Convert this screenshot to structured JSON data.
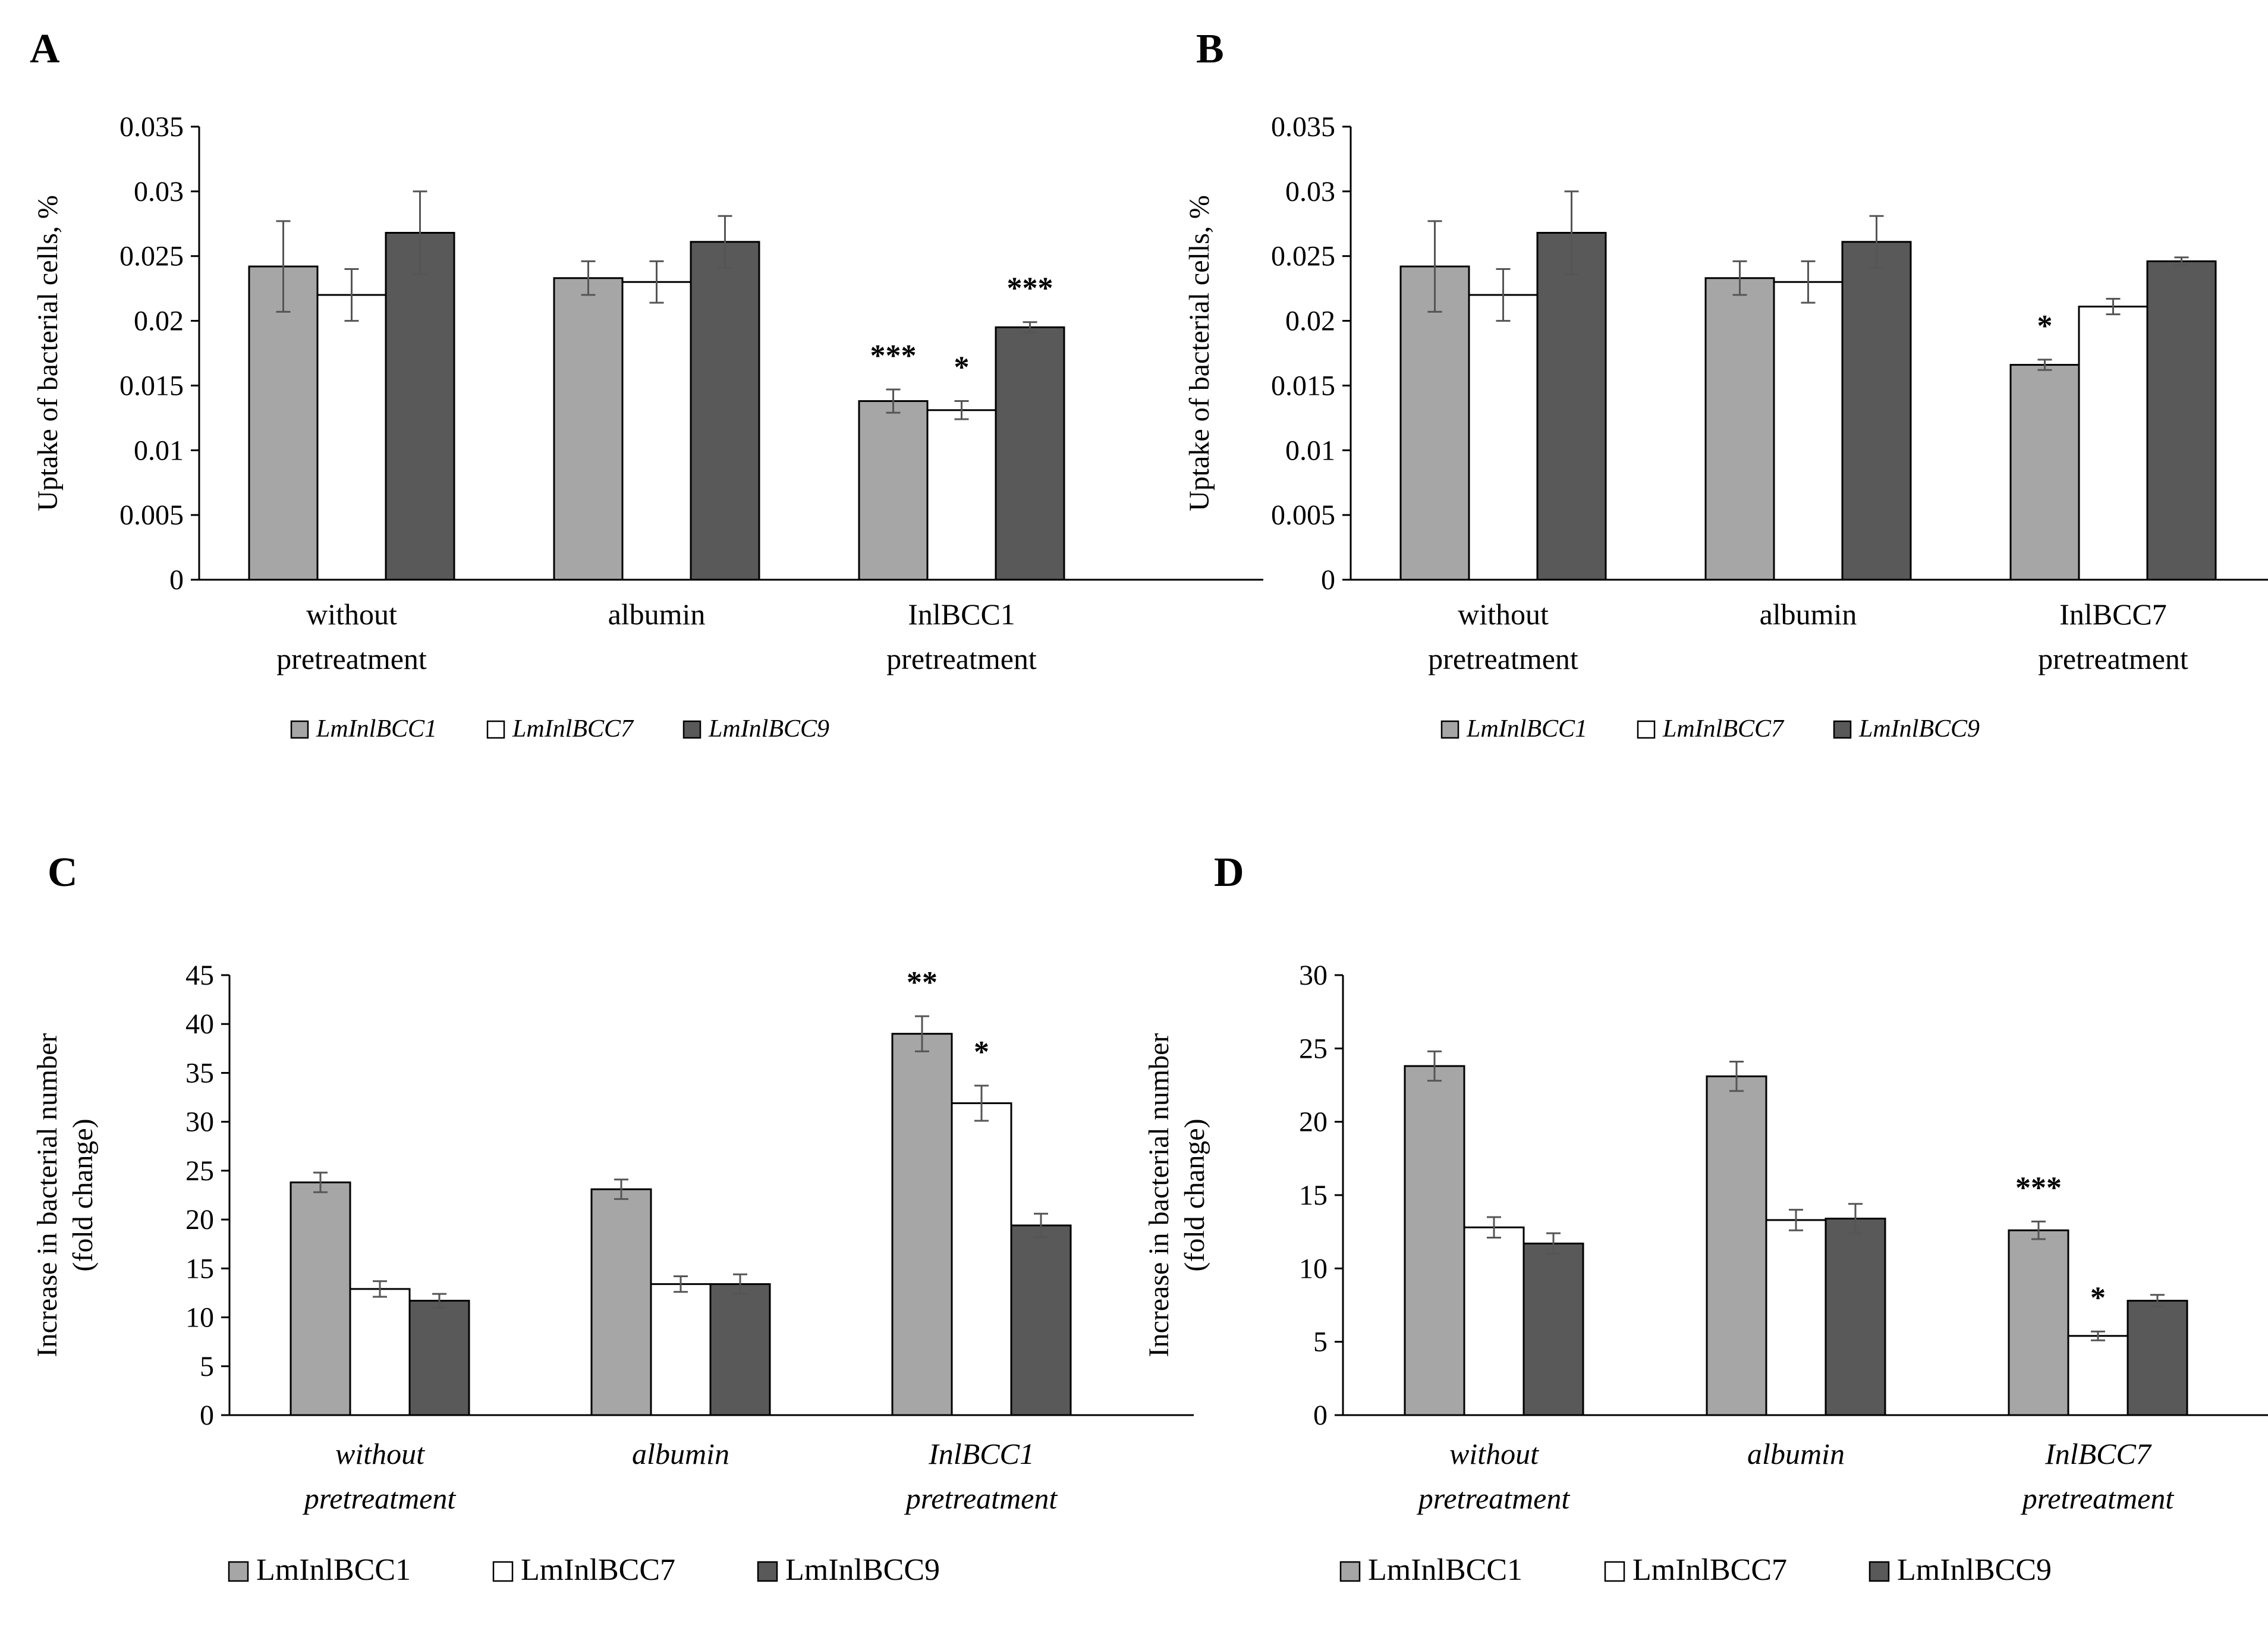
{
  "colors": {
    "s1": "#a6a6a6",
    "s2": "#ffffff",
    "s3": "#595959",
    "stroke": "#000000",
    "axis": "#000000"
  },
  "chart_data": [
    {
      "type": "bar",
      "panel": "A",
      "ylabel": "Uptake of bacterial cells, %",
      "ylim": [
        0,
        0.035
      ],
      "yticks": [
        "0",
        "0.005",
        "0.01",
        "0.015",
        "0.02",
        "0.025",
        "0.03",
        "0.035"
      ],
      "categories": [
        {
          "line1": "without",
          "line2": "pretreatment"
        },
        {
          "line1": "albumin",
          "line2": ""
        },
        {
          "line1": "InlBCC1",
          "line2": "pretreatment"
        }
      ],
      "series": [
        {
          "name": "LmInlBCC1",
          "values": [
            0.0242,
            0.0233,
            0.0138
          ],
          "errors": [
            0.0035,
            0.0013,
            0.0009
          ]
        },
        {
          "name": "LmInlBCC7",
          "values": [
            0.022,
            0.023,
            0.0131
          ],
          "errors": [
            0.002,
            0.0016,
            0.0007
          ]
        },
        {
          "name": "LmInlBCC9",
          "values": [
            0.0268,
            0.0261,
            0.0195
          ],
          "errors": [
            0.0032,
            0.002,
            0.0004
          ]
        }
      ],
      "annotations": [
        {
          "category": 2,
          "series": 0,
          "text": "***"
        },
        {
          "category": 2,
          "series": 1,
          "text": "*"
        },
        {
          "category": 2,
          "series": 2,
          "text": "***"
        }
      ],
      "italic_categories": false,
      "legend": {
        "italic": true
      }
    },
    {
      "type": "bar",
      "panel": "B",
      "ylabel": "Uptake of bacterial cells, %",
      "ylim": [
        0,
        0.035
      ],
      "yticks": [
        "0",
        "0.005",
        "0.01",
        "0.015",
        "0.02",
        "0.025",
        "0.03",
        "0.035"
      ],
      "categories": [
        {
          "line1": "without",
          "line2": "pretreatment"
        },
        {
          "line1": "albumin",
          "line2": ""
        },
        {
          "line1": "InlBCC7",
          "line2": "pretreatment"
        }
      ],
      "series": [
        {
          "name": "LmInlBCC1",
          "values": [
            0.0242,
            0.0233,
            0.0166
          ],
          "errors": [
            0.0035,
            0.0013,
            0.0004
          ]
        },
        {
          "name": "LmInlBCC7",
          "values": [
            0.022,
            0.023,
            0.0211
          ],
          "errors": [
            0.002,
            0.0016,
            0.0006
          ]
        },
        {
          "name": "LmInlBCC9",
          "values": [
            0.0268,
            0.0261,
            0.0246
          ],
          "errors": [
            0.0032,
            0.002,
            0.0003
          ]
        }
      ],
      "annotations": [
        {
          "category": 2,
          "series": 0,
          "text": "*"
        }
      ],
      "italic_categories": false,
      "legend": {
        "italic": true
      }
    },
    {
      "type": "bar",
      "panel": "C",
      "ylabel": "Increase in bacterial number (fold change)",
      "ylabel_lines": [
        "Increase in bacterial number",
        "(fold change)"
      ],
      "ylim": [
        0,
        45
      ],
      "yticks": [
        "0",
        "5",
        "10",
        "15",
        "20",
        "25",
        "30",
        "35",
        "40",
        "45"
      ],
      "categories": [
        {
          "line1": "without",
          "line2": "pretreatment"
        },
        {
          "line1": "albumin",
          "line2": ""
        },
        {
          "line1": "InlBCC1",
          "line2": "pretreatment"
        }
      ],
      "series": [
        {
          "name": "LmInlBCC1",
          "values": [
            23.8,
            23.1,
            39.0
          ],
          "errors": [
            1.0,
            1.0,
            1.8
          ]
        },
        {
          "name": "LmInlBCC7",
          "values": [
            12.9,
            13.4,
            31.9
          ],
          "errors": [
            0.8,
            0.8,
            1.8
          ]
        },
        {
          "name": "LmInlBCC9",
          "values": [
            11.7,
            13.4,
            19.4
          ],
          "errors": [
            0.7,
            1.0,
            1.2
          ]
        }
      ],
      "annotations": [
        {
          "category": 2,
          "series": 0,
          "text": "**"
        },
        {
          "category": 2,
          "series": 1,
          "text": "*"
        }
      ],
      "italic_categories": true,
      "legend": {
        "italic": false
      }
    },
    {
      "type": "bar",
      "panel": "D",
      "ylabel": "Increase in bacterial number (fold change)",
      "ylabel_lines": [
        "Increase in bacterial number",
        "(fold change)"
      ],
      "ylim": [
        0,
        30
      ],
      "yticks": [
        "0",
        "5",
        "10",
        "15",
        "20",
        "25",
        "30"
      ],
      "categories": [
        {
          "line1": "without",
          "line2": "pretreatment"
        },
        {
          "line1": "albumin",
          "line2": ""
        },
        {
          "line1": "InlBCC7",
          "line2": "pretreatment"
        }
      ],
      "series": [
        {
          "name": "LmInlBCC1",
          "values": [
            23.8,
            23.1,
            12.6
          ],
          "errors": [
            1.0,
            1.0,
            0.6
          ]
        },
        {
          "name": "LmInlBCC7",
          "values": [
            12.8,
            13.3,
            5.4
          ],
          "errors": [
            0.7,
            0.7,
            0.3
          ]
        },
        {
          "name": "LmInlBCC9",
          "values": [
            11.7,
            13.4,
            7.8
          ],
          "errors": [
            0.7,
            1.0,
            0.4
          ]
        }
      ],
      "annotations": [
        {
          "category": 2,
          "series": 0,
          "text": "***"
        },
        {
          "category": 2,
          "series": 1,
          "text": "*"
        }
      ],
      "italic_categories": true,
      "legend": {
        "italic": false
      }
    }
  ]
}
